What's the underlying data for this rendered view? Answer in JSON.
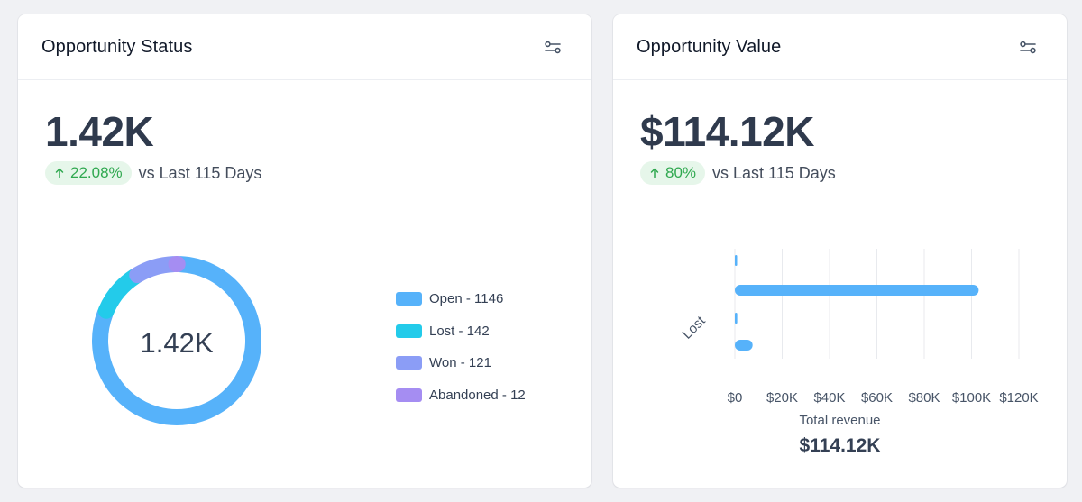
{
  "status_card": {
    "title": "Opportunity Status",
    "value": "1.42K",
    "trend": "22.08%",
    "comparison": "vs Last 115 Days",
    "donut_center": "1.42K",
    "legend": [
      {
        "label": "Open - 1146",
        "color": "#56b2fa"
      },
      {
        "label": "Lost - 142",
        "color": "#23cbea"
      },
      {
        "label": "Won - 121",
        "color": "#8b9df6"
      },
      {
        "label": "Abandoned - 12",
        "color": "#a58df2"
      }
    ]
  },
  "value_card": {
    "title": "Opportunity Value",
    "value": "$114.12K",
    "trend": "80%",
    "comparison": "vs Last 115 Days",
    "y_label": "Lost",
    "total_label": "Total revenue",
    "total_value": "$114.12K"
  },
  "icons": {
    "filter": "sliders-icon",
    "trend": "arrow-up-icon"
  },
  "colors": {
    "trend_text": "#2fa84f",
    "trend_bg": "#e6f6ea",
    "bar": "#56b2fa"
  },
  "chart_data": [
    {
      "type": "pie",
      "style": "donut",
      "categories": [
        "Open",
        "Lost",
        "Won",
        "Abandoned"
      ],
      "values": [
        1146,
        142,
        121,
        12
      ],
      "colors": [
        "#56b2fa",
        "#23cbea",
        "#8b9df6",
        "#a58df2"
      ],
      "center_label": "1.42K",
      "legend_position": "right"
    },
    {
      "type": "bar",
      "orientation": "horizontal",
      "categories": [
        "",
        "",
        "Lost",
        ""
      ],
      "values": [
        0,
        103000,
        1000,
        7500
      ],
      "xlim": [
        0,
        120000
      ],
      "x_ticks": [
        0,
        20000,
        40000,
        60000,
        80000,
        100000,
        120000
      ],
      "x_tick_labels": [
        "$0",
        "$20K",
        "$40K",
        "$60K",
        "$80K",
        "$100K",
        "$120K"
      ],
      "grid": true,
      "color": "#56b2fa"
    }
  ]
}
